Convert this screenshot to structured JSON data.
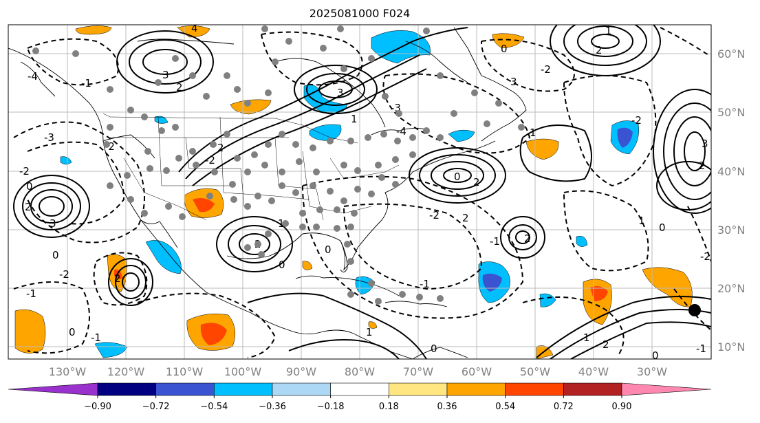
{
  "title": "2025081000 F024",
  "lon_labels": [
    "130°W",
    "120°W",
    "110°W",
    "100°W",
    "90°W",
    "80°W",
    "70°W",
    "60°W",
    "50°W",
    "40°W",
    "30°W"
  ],
  "lat_labels": [
    "60°N",
    "50°N",
    "40°N",
    "30°N",
    "20°N",
    "10°N"
  ],
  "colorbar": {
    "ticks": [
      "−0.90",
      "−0.72",
      "−0.54",
      "−0.36",
      "−0.18",
      "0.18",
      "0.36",
      "0.54",
      "0.72",
      "0.90"
    ],
    "colors": [
      "#9932cc",
      "#000080",
      "#3a53d0",
      "#00bfff",
      "#add8f5",
      "#ffffff",
      "#ffe680",
      "#ffa500",
      "#ff4500",
      "#b22222",
      "#ff88b0"
    ]
  },
  "contour_labels": [
    "4",
    "3",
    "2",
    "1",
    "0",
    "-1",
    "-2",
    "-3",
    "-4"
  ]
}
